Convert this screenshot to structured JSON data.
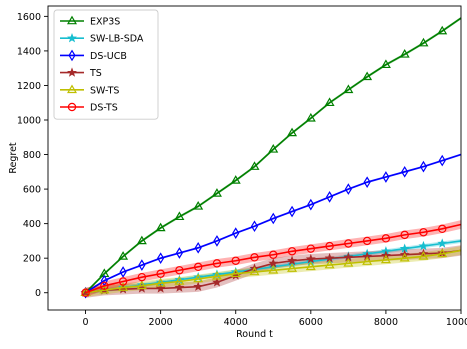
{
  "chart_data": {
    "type": "line",
    "title": "",
    "xlabel": "Round t",
    "ylabel": "Regret",
    "xlim": [
      -1000,
      10000
    ],
    "ylim": [
      -100,
      1660
    ],
    "xticks": [
      0,
      2000,
      4000,
      6000,
      8000,
      10000
    ],
    "yticks": [
      0,
      200,
      400,
      600,
      800,
      1000,
      1200,
      1400,
      1600
    ],
    "grid": false,
    "legend_position": "top-left",
    "series": [
      {
        "name": "EXP3S",
        "color": "#008000",
        "marker": "triangle",
        "x": [
          0,
          500,
          1000,
          1500,
          2000,
          2500,
          3000,
          3500,
          4000,
          4500,
          5000,
          5500,
          6000,
          6500,
          7000,
          7500,
          8000,
          8500,
          9000,
          9500,
          10000
        ],
        "y": [
          0,
          110,
          210,
          300,
          375,
          440,
          500,
          575,
          650,
          730,
          830,
          925,
          1010,
          1100,
          1175,
          1250,
          1320,
          1380,
          1445,
          1515,
          1590
        ],
        "band": 8
      },
      {
        "name": "SW-LB-SDA",
        "color": "#17becf",
        "marker": "star",
        "x": [
          0,
          500,
          1000,
          1500,
          2000,
          2500,
          3000,
          3500,
          4000,
          4500,
          5000,
          5500,
          6000,
          6500,
          7000,
          7500,
          8000,
          8500,
          9000,
          9500,
          10000
        ],
        "y": [
          0,
          15,
          30,
          45,
          60,
          75,
          90,
          105,
          120,
          135,
          150,
          165,
          180,
          195,
          210,
          225,
          240,
          255,
          270,
          285,
          300
        ],
        "band": 12
      },
      {
        "name": "DS-UCB",
        "color": "#0000ff",
        "marker": "diamond",
        "x": [
          0,
          500,
          1000,
          1500,
          2000,
          2500,
          3000,
          3500,
          4000,
          4500,
          5000,
          5500,
          6000,
          6500,
          7000,
          7500,
          8000,
          8500,
          9000,
          9500,
          10000
        ],
        "y": [
          0,
          70,
          120,
          160,
          200,
          230,
          260,
          300,
          345,
          385,
          430,
          470,
          510,
          555,
          600,
          640,
          670,
          700,
          730,
          765,
          800
        ],
        "band": 6
      },
      {
        "name": "TS",
        "color": "#a52a2a",
        "marker": "star",
        "x": [
          0,
          500,
          1000,
          1500,
          2000,
          2500,
          3000,
          3500,
          4000,
          4500,
          5000,
          5500,
          6000,
          6500,
          7000,
          7500,
          8000,
          8500,
          9000,
          9500,
          10000
        ],
        "y": [
          0,
          15,
          20,
          25,
          25,
          30,
          35,
          60,
          100,
          140,
          170,
          185,
          195,
          200,
          205,
          210,
          215,
          220,
          225,
          230,
          245
        ],
        "band": 30
      },
      {
        "name": "SW-TS",
        "color": "#bfbf00",
        "marker": "triangle",
        "x": [
          0,
          500,
          1000,
          1500,
          2000,
          2500,
          3000,
          3500,
          4000,
          4500,
          5000,
          5500,
          6000,
          6500,
          7000,
          7500,
          8000,
          8500,
          9000,
          9500,
          10000
        ],
        "y": [
          0,
          15,
          30,
          40,
          55,
          65,
          80,
          95,
          110,
          120,
          130,
          140,
          150,
          160,
          170,
          180,
          190,
          200,
          210,
          225,
          245
        ],
        "band": 25
      },
      {
        "name": "DS-TS",
        "color": "#ff0000",
        "marker": "circle",
        "x": [
          0,
          500,
          1000,
          1500,
          2000,
          2500,
          3000,
          3500,
          4000,
          4500,
          5000,
          5500,
          6000,
          6500,
          7000,
          7500,
          8000,
          8500,
          9000,
          9500,
          10000
        ],
        "y": [
          0,
          40,
          65,
          90,
          110,
          130,
          150,
          170,
          185,
          205,
          220,
          240,
          255,
          270,
          285,
          300,
          315,
          335,
          350,
          370,
          395
        ],
        "band": 25
      }
    ]
  }
}
